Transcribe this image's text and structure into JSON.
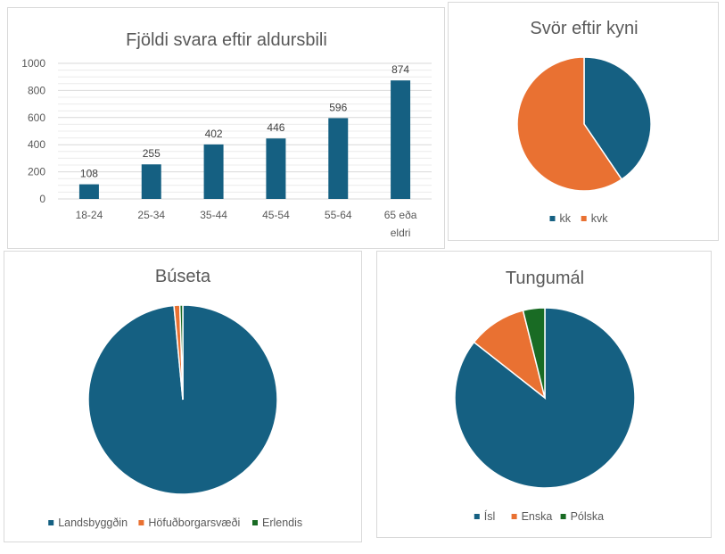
{
  "chart_data": [
    {
      "type": "bar",
      "title": "Fjöldi svara eftir aldursbili",
      "categories": [
        "18-24",
        "25-34",
        "35-44",
        "45-54",
        "55-64",
        "65 eða eldri"
      ],
      "values": [
        108,
        255,
        402,
        446,
        596,
        874
      ],
      "data_labels": true,
      "ylim": [
        0,
        1000
      ],
      "yticks": [
        0,
        200,
        400,
        600,
        800,
        1000
      ],
      "grid": true,
      "color": "#156082"
    },
    {
      "type": "pie",
      "title": "Svör eftir kyni",
      "categories": [
        "kk",
        "kvk"
      ],
      "values": [
        40.5,
        59.5
      ],
      "colors": [
        "#156082",
        "#E97132"
      ],
      "legend": "bottom"
    },
    {
      "type": "pie",
      "title": "Búseta",
      "categories": [
        "Landsbyggðin",
        "Höfuðborgarsvæði",
        "Erlendis"
      ],
      "values": [
        98.5,
        1.0,
        0.5
      ],
      "colors": [
        "#156082",
        "#E97132",
        "#196B24"
      ],
      "legend": "bottom"
    },
    {
      "type": "pie",
      "title": "Tungumál",
      "categories": [
        "Ísl",
        "Enska",
        "Pólska"
      ],
      "values": [
        85.6,
        10.5,
        3.9
      ],
      "colors": [
        "#156082",
        "#E97132",
        "#196B24"
      ],
      "legend": "bottom"
    }
  ]
}
